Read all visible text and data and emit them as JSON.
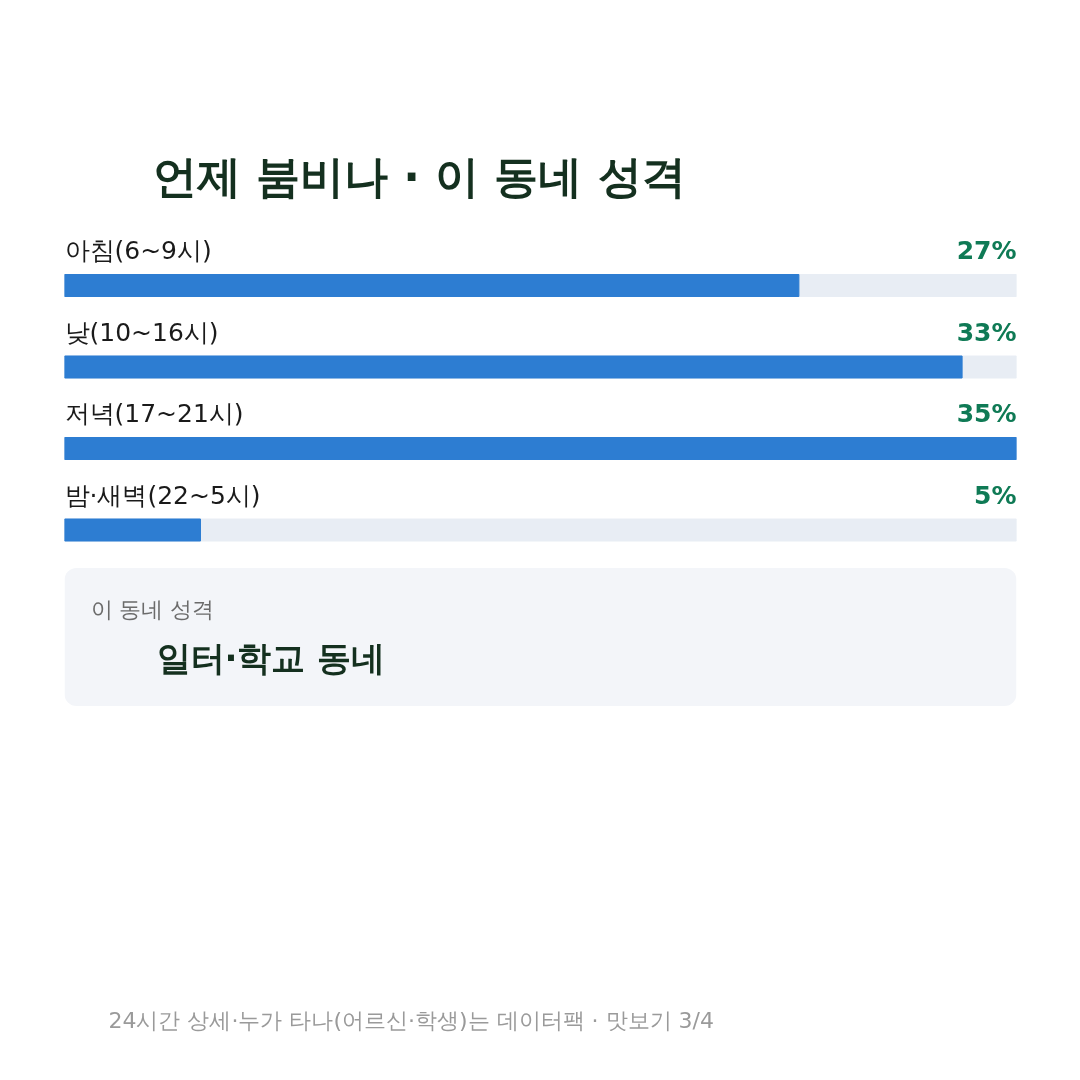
{
  "chart_data": {
    "type": "bar",
    "orientation": "horizontal",
    "title": "언제 붐비나 · 이 동네 성격",
    "categories": [
      "아침(6~9시)",
      "낮(10~16시)",
      "저녁(17~21시)",
      "밤·새벽(22~5시)"
    ],
    "values": [
      27,
      33,
      35,
      5
    ],
    "value_labels": [
      "27%",
      "33%",
      "35%",
      "5%"
    ],
    "color": "#2d7dd2",
    "xlim": [
      0,
      35
    ],
    "tick_labels": false,
    "grid": false,
    "annotations": [
      "이 동네 성격",
      "일터·학교 동네",
      "24시간 상세·누가 타나(어르신·학생)는 데이터팩 · 맛보기 3/4"
    ]
  }
}
